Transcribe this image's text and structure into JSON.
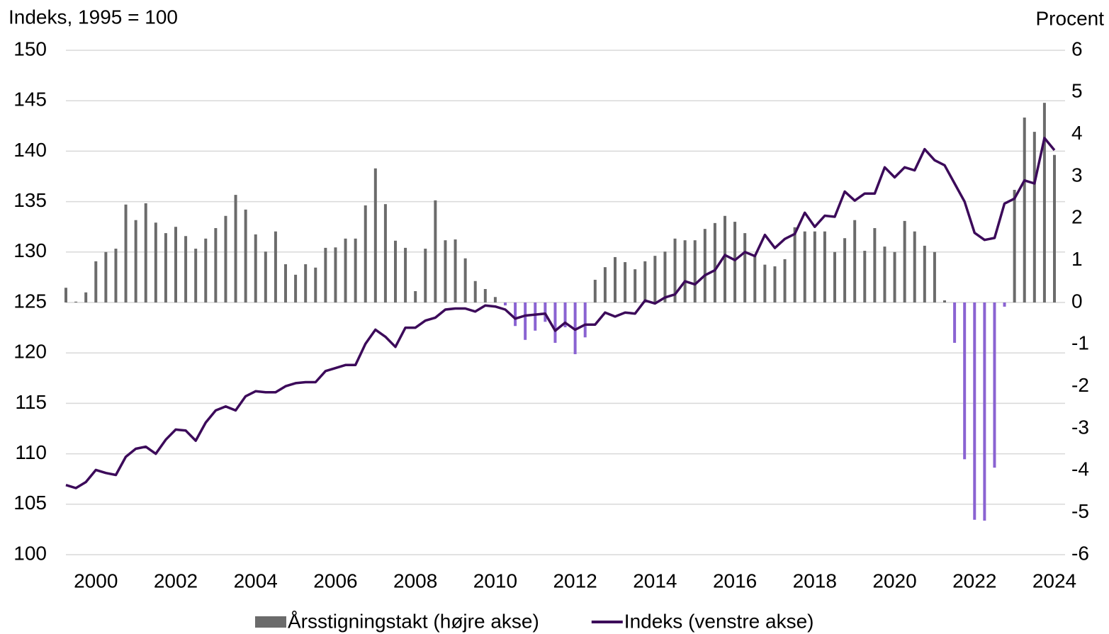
{
  "chart_data": {
    "type": "bar_line",
    "y_label": "Indeks, 1995 = 100",
    "y2_label": "Procent",
    "categories": [
      null,
      null,
      null,
      "2000",
      null,
      null,
      null,
      null,
      null,
      null,
      null,
      "2002",
      null,
      null,
      null,
      null,
      null,
      null,
      null,
      "2004",
      null,
      null,
      null,
      null,
      null,
      null,
      null,
      "2006",
      null,
      null,
      null,
      null,
      null,
      null,
      null,
      "2008",
      null,
      null,
      null,
      null,
      null,
      null,
      null,
      "2010",
      null,
      null,
      null,
      null,
      null,
      null,
      null,
      "2012",
      null,
      null,
      null,
      null,
      null,
      null,
      null,
      "2014",
      null,
      null,
      null,
      null,
      null,
      null,
      null,
      "2016",
      null,
      null,
      null,
      null,
      null,
      null,
      null,
      "2018",
      null,
      null,
      null,
      null,
      null,
      null,
      null,
      "2020",
      null,
      null,
      null,
      null,
      null,
      null,
      null,
      "2022",
      null,
      null,
      null,
      null,
      null,
      null,
      null,
      "2024"
    ],
    "ylim": [
      100,
      150
    ],
    "yticks": [
      100,
      105,
      110,
      115,
      120,
      125,
      130,
      135,
      140,
      145,
      150
    ],
    "y2lim": [
      -6,
      6
    ],
    "y2ticks": [
      -6,
      -5,
      -4,
      -3,
      -2,
      -1,
      0,
      1,
      2,
      3,
      4,
      5,
      6
    ],
    "grid": true,
    "series": [
      {
        "name": "Årsstigningstakt (højre akse)",
        "type": "bar",
        "axis": "y2",
        "color": "#6b6b6b",
        "negative_color": "#8a63d2",
        "values": [
          0.35,
          0.02,
          0.24,
          0.98,
          1.2,
          1.28,
          2.33,
          1.96,
          2.36,
          1.9,
          1.65,
          1.8,
          1.58,
          1.28,
          1.52,
          1.77,
          2.06,
          2.56,
          2.21,
          1.62,
          1.21,
          1.69,
          0.91,
          0.66,
          0.91,
          0.83,
          1.3,
          1.31,
          1.52,
          1.52,
          2.31,
          3.19,
          2.34,
          1.47,
          1.3,
          0.27,
          1.28,
          2.43,
          1.48,
          1.5,
          1.05,
          0.51,
          0.32,
          0.13,
          -0.07,
          -0.56,
          -0.89,
          -0.67,
          -0.46,
          -0.96,
          -0.59,
          -1.23,
          -0.83,
          0.54,
          0.84,
          1.08,
          0.96,
          0.79,
          0.98,
          1.11,
          1.21,
          1.52,
          1.48,
          1.48,
          1.75,
          1.89,
          2.06,
          1.92,
          1.65,
          1.1,
          0.9,
          0.86,
          1.03,
          1.79,
          1.69,
          1.69,
          1.69,
          1.2,
          1.53,
          1.96,
          1.23,
          1.77,
          1.33,
          1.2,
          1.94,
          1.69,
          1.35,
          1.2,
          0.05,
          -0.96,
          -3.73,
          -5.17,
          -5.19,
          -3.93,
          -0.1,
          2.68,
          4.4,
          4.06,
          4.75,
          3.51
        ]
      },
      {
        "name": "Indeks (venstre akse)",
        "type": "line",
        "axis": "y",
        "color": "#3c0a5a",
        "values": [
          106.9,
          106.6,
          107.2,
          108.4,
          108.1,
          107.9,
          109.7,
          110.5,
          110.7,
          110.0,
          111.4,
          112.4,
          112.3,
          111.3,
          113.1,
          114.3,
          114.7,
          114.3,
          115.7,
          116.2,
          116.1,
          116.1,
          116.7,
          117.0,
          117.1,
          117.1,
          118.2,
          118.5,
          118.8,
          118.8,
          120.9,
          122.3,
          121.6,
          120.6,
          122.5,
          122.5,
          123.2,
          123.5,
          124.3,
          124.4,
          124.4,
          124.1,
          124.7,
          124.6,
          124.3,
          123.4,
          123.7,
          123.8,
          123.9,
          122.2,
          123.0,
          122.3,
          122.8,
          122.8,
          124.0,
          123.6,
          124.0,
          123.9,
          125.2,
          124.9,
          125.5,
          125.8,
          127.1,
          126.8,
          127.7,
          128.2,
          129.7,
          129.2,
          130.0,
          129.6,
          131.7,
          130.4,
          131.3,
          131.8,
          133.9,
          132.5,
          133.6,
          133.5,
          136.0,
          135.1,
          135.8,
          135.8,
          138.4,
          137.4,
          138.4,
          138.1,
          140.2,
          139.1,
          138.6,
          136.8,
          135.0,
          131.9,
          131.2,
          131.4,
          134.8,
          135.3,
          137.1,
          136.8,
          141.3,
          140.1
        ]
      }
    ]
  }
}
